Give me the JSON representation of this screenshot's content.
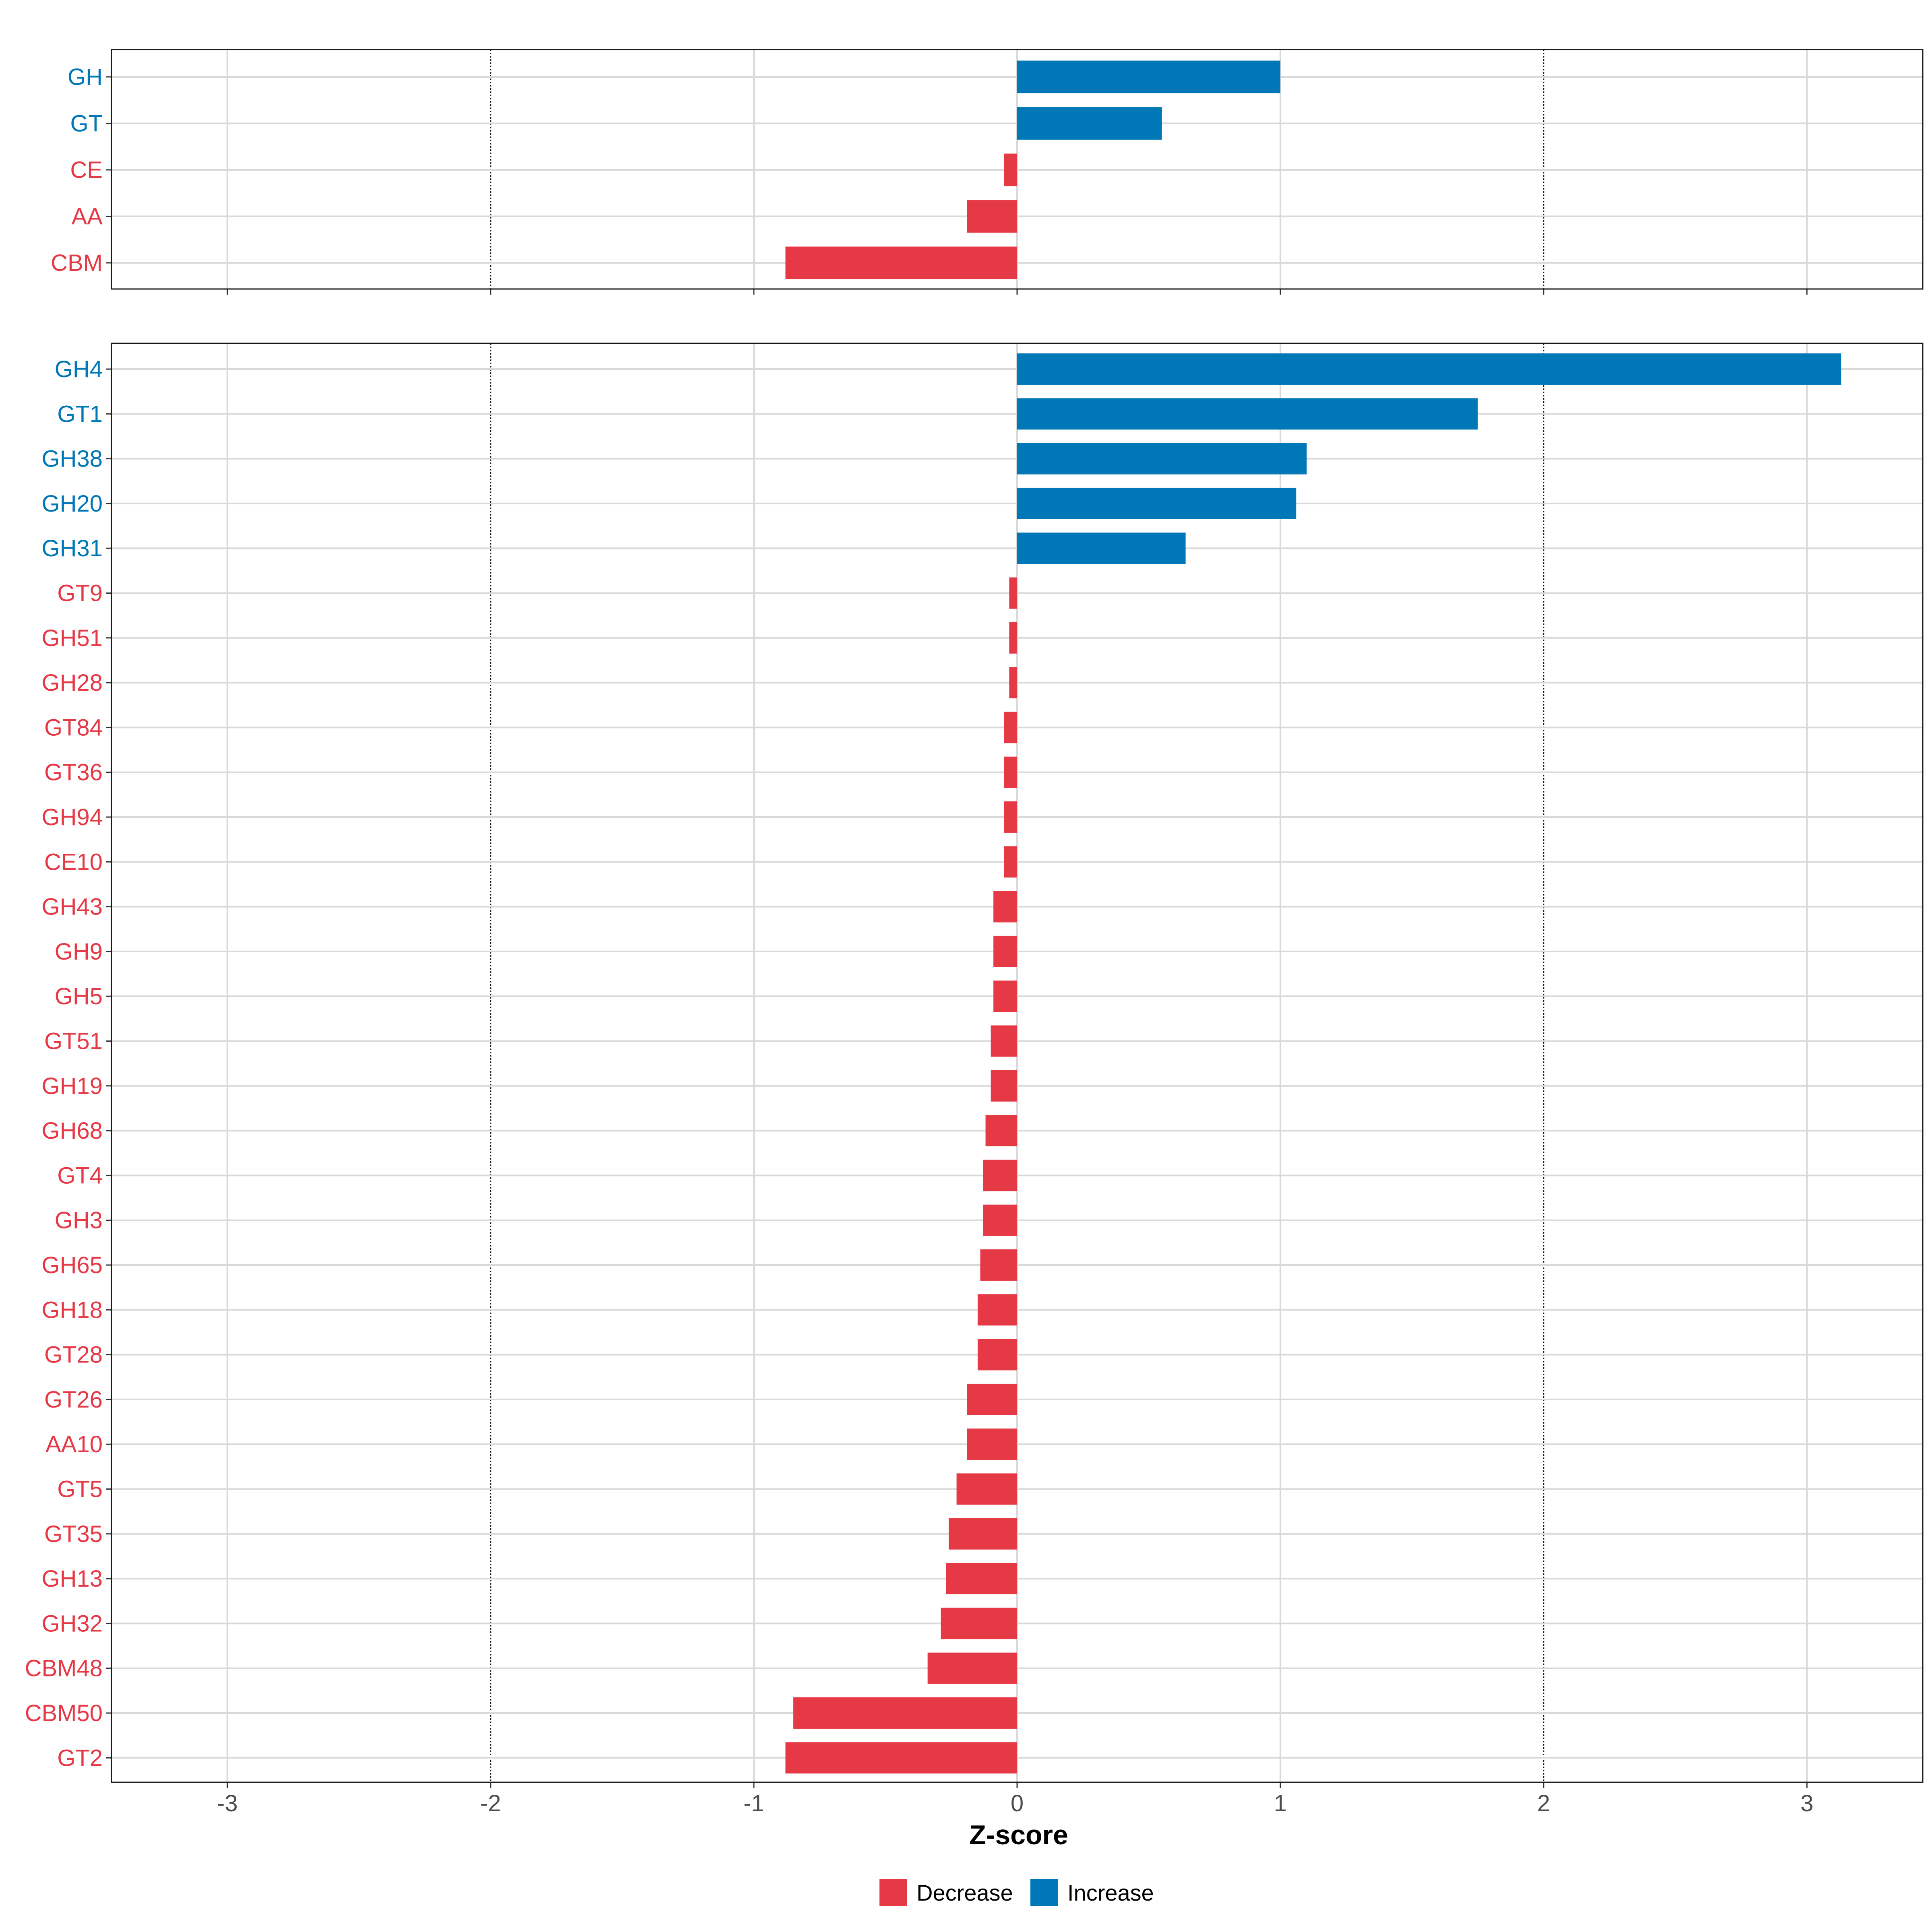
{
  "chart_data": {
    "type": "bar",
    "orientation": "horizontal",
    "xlabel": "Z-score",
    "xlim": [
      -3.44,
      3.44
    ],
    "x_ticks": [
      -3,
      -2,
      -1,
      0,
      1,
      2,
      3
    ],
    "x_tick_labels": [
      "-3",
      "-2",
      "-1",
      "0",
      "1",
      "2",
      "3"
    ],
    "reference_lines": [
      -2,
      2
    ],
    "colors": {
      "Decrease": "#e63946",
      "Increase": "#0077b6"
    },
    "legend": {
      "placement": "bottom-center",
      "entries": [
        {
          "label": "Decrease",
          "color": "#e63946"
        },
        {
          "label": "Increase",
          "color": "#0077b6"
        }
      ]
    },
    "panels": [
      {
        "name": "class",
        "categories": [
          "GH",
          "GT",
          "CE",
          "AA",
          "CBM"
        ],
        "values": [
          1.0,
          0.55,
          -0.05,
          -0.19,
          -0.88
        ],
        "direction": [
          "Increase",
          "Increase",
          "Decrease",
          "Decrease",
          "Decrease"
        ]
      },
      {
        "name": "family",
        "categories": [
          "GH4",
          "GT1",
          "GH38",
          "GH20",
          "GH31",
          "GT9",
          "GH51",
          "GH28",
          "GT84",
          "GT36",
          "GH94",
          "CE10",
          "GH43",
          "GH9",
          "GH5",
          "GT51",
          "GH19",
          "GH68",
          "GT4",
          "GH3",
          "GH65",
          "GH18",
          "GT28",
          "GT26",
          "AA10",
          "GT5",
          "GT35",
          "GH13",
          "GH32",
          "CBM48",
          "CBM50",
          "GT2"
        ],
        "values": [
          3.13,
          1.75,
          1.1,
          1.06,
          0.64,
          -0.03,
          -0.03,
          -0.03,
          -0.05,
          -0.05,
          -0.05,
          -0.05,
          -0.09,
          -0.09,
          -0.09,
          -0.1,
          -0.1,
          -0.12,
          -0.13,
          -0.13,
          -0.14,
          -0.15,
          -0.15,
          -0.19,
          -0.19,
          -0.23,
          -0.26,
          -0.27,
          -0.29,
          -0.34,
          -0.85,
          -0.88
        ],
        "direction": [
          "Increase",
          "Increase",
          "Increase",
          "Increase",
          "Increase",
          "Decrease",
          "Decrease",
          "Decrease",
          "Decrease",
          "Decrease",
          "Decrease",
          "Decrease",
          "Decrease",
          "Decrease",
          "Decrease",
          "Decrease",
          "Decrease",
          "Decrease",
          "Decrease",
          "Decrease",
          "Decrease",
          "Decrease",
          "Decrease",
          "Decrease",
          "Decrease",
          "Decrease",
          "Decrease",
          "Decrease",
          "Decrease",
          "Decrease",
          "Decrease",
          "Decrease"
        ]
      }
    ]
  }
}
